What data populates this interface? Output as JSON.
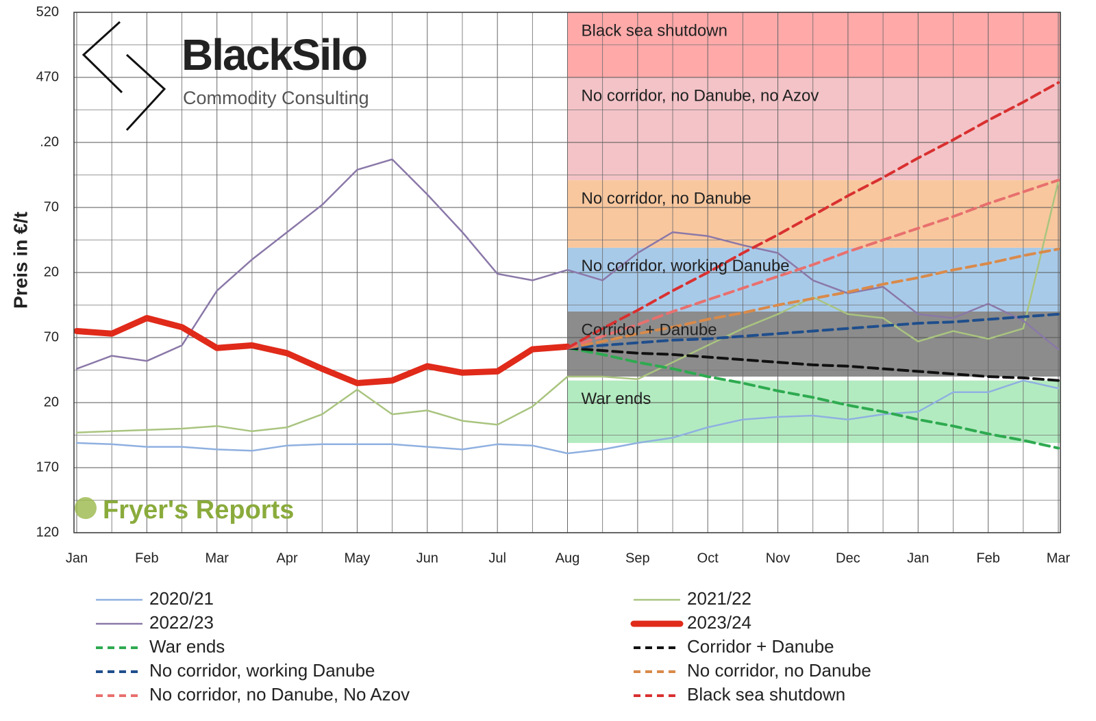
{
  "chart_data": {
    "type": "line",
    "y_label": "Preis in €/t",
    "logo_title": "BlackSilo",
    "logo_subtitle": "Commodity Consulting",
    "watermark": "Fryer's Reports",
    "categories": [
      "Jan",
      null,
      "Feb",
      null,
      "Mar",
      null,
      "Apr",
      null,
      "May",
      null,
      "Jun",
      null,
      "Jul",
      null,
      "Aug",
      null,
      "Sep",
      null,
      "Oct",
      null,
      "Nov",
      null,
      "Dec",
      null,
      "Jan",
      null,
      "Feb",
      null,
      "Mar"
    ],
    "ylim": [
      120,
      520
    ],
    "yticks": [
      520,
      470,
      {
        "value": 420,
        "label": ".20"
      },
      {
        "value": 370,
        "label": "70"
      },
      {
        "value": 320,
        "label": "20"
      },
      {
        "value": 270,
        "label": "70"
      },
      {
        "value": 220,
        "label": "20"
      },
      170,
      120
    ],
    "grid": true,
    "bands": [
      {
        "label": "Black sea shutdown",
        "from": 470,
        "to": 520,
        "color": "#ffa9a9"
      },
      {
        "label": "No corridor, no Danube, no Azov",
        "from": 391,
        "to": 470,
        "color": "#f3c3c7"
      },
      {
        "label": "No corridor, no Danube",
        "from": 339,
        "to": 391,
        "color": "#f8c79e"
      },
      {
        "label": "No corridor, working Danube",
        "from": 290,
        "to": 339,
        "color": "#a8cae9"
      },
      {
        "label": "Corridor + Danube",
        "from": 240,
        "to": 290,
        "color": "#8c8c8c"
      },
      {
        "label": "War ends",
        "from": 189,
        "to": 237,
        "color": "#b3ebc0"
      }
    ],
    "series": [
      {
        "name": "2020/21",
        "color": "#8fb0e0",
        "style": "solid",
        "values": [
          189,
          188,
          186,
          186,
          184,
          183,
          187,
          188,
          188,
          188,
          186,
          184,
          188,
          187,
          181,
          184,
          189,
          193,
          201,
          207,
          209,
          210,
          207,
          211,
          213,
          228,
          228,
          237,
          231
        ]
      },
      {
        "name": "2021/22",
        "color": "#a9c47f",
        "style": "solid",
        "values": [
          197,
          198,
          199,
          200,
          202,
          198,
          201,
          211,
          230,
          211,
          214,
          206,
          203,
          217,
          240,
          240,
          238,
          251,
          264,
          277,
          288,
          301,
          288,
          285,
          267,
          275,
          269,
          277,
          390
        ]
      },
      {
        "name": "2022/23",
        "color": "#8a78a8",
        "style": "solid",
        "values": [
          246,
          256,
          252,
          264,
          306,
          330,
          351,
          372,
          399,
          407,
          380,
          351,
          319,
          314,
          322,
          314,
          335,
          351,
          348,
          341,
          335,
          314,
          304,
          309,
          288,
          285,
          296,
          283,
          261
        ]
      },
      {
        "name": "2023/24",
        "color": "#e02a1a",
        "style": "thick",
        "values": [
          275,
          273,
          285,
          278,
          262,
          264,
          258,
          246,
          235,
          237,
          248,
          243,
          244,
          261,
          263,
          null,
          null,
          null,
          null,
          null,
          null,
          null,
          null,
          null,
          null,
          null,
          null,
          null,
          null
        ]
      },
      {
        "name": "War ends",
        "color": "#2eaa50",
        "style": "dashed",
        "values": [
          null,
          null,
          null,
          null,
          null,
          null,
          null,
          null,
          null,
          null,
          null,
          null,
          null,
          null,
          262,
          257,
          251,
          246,
          240,
          235,
          229,
          224,
          218,
          213,
          207,
          202,
          196,
          191,
          185
        ]
      },
      {
        "name": "Corridor + Danube",
        "color": "#111111",
        "style": "dashed",
        "values": [
          null,
          null,
          null,
          null,
          null,
          null,
          null,
          null,
          null,
          null,
          null,
          null,
          null,
          null,
          262,
          260,
          258,
          257,
          255,
          253,
          251,
          249,
          248,
          246,
          244,
          242,
          240,
          239,
          237
        ]
      },
      {
        "name": "No corridor, working Danube",
        "color": "#1f4e8c",
        "style": "dashed",
        "values": [
          null,
          null,
          null,
          null,
          null,
          null,
          null,
          null,
          null,
          null,
          null,
          null,
          null,
          null,
          262,
          264,
          266,
          268,
          269,
          271,
          273,
          275,
          277,
          279,
          281,
          282,
          284,
          286,
          288
        ]
      },
      {
        "name": "No corridor, no Danube",
        "color": "#d98a4a",
        "style": "dashed",
        "values": [
          null,
          null,
          null,
          null,
          null,
          null,
          null,
          null,
          null,
          null,
          null,
          null,
          null,
          null,
          262,
          267,
          273,
          278,
          284,
          289,
          295,
          300,
          305,
          311,
          316,
          322,
          327,
          333,
          338
        ]
      },
      {
        "name": "No corridor, no Danube, No Azov",
        "color": "#e8706e",
        "style": "dashed",
        "values": [
          null,
          null,
          null,
          null,
          null,
          null,
          null,
          null,
          null,
          null,
          null,
          null,
          null,
          null,
          262,
          271,
          280,
          290,
          299,
          308,
          317,
          326,
          336,
          345,
          354,
          363,
          373,
          382,
          391
        ]
      },
      {
        "name": "Black sea shutdown",
        "color": "#d93030",
        "style": "dashed",
        "values": [
          null,
          null,
          null,
          null,
          null,
          null,
          null,
          null,
          null,
          null,
          null,
          null,
          null,
          null,
          262,
          277,
          291,
          306,
          320,
          335,
          349,
          364,
          379,
          393,
          408,
          422,
          437,
          451,
          466
        ]
      }
    ]
  }
}
